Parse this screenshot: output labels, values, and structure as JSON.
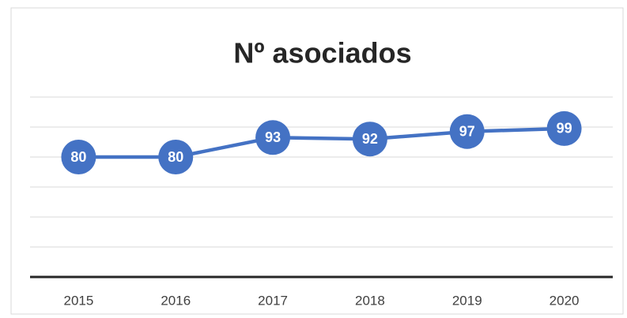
{
  "chart_data": {
    "type": "line",
    "title": "Nº asociados",
    "categories": [
      "2015",
      "2016",
      "2017",
      "2018",
      "2019",
      "2020"
    ],
    "values": [
      80,
      80,
      93,
      92,
      97,
      99
    ],
    "color": "#4472c4",
    "ylim": [
      0,
      120
    ],
    "yticks": [
      0,
      20,
      40,
      60,
      80,
      100,
      120
    ],
    "grid": true
  }
}
